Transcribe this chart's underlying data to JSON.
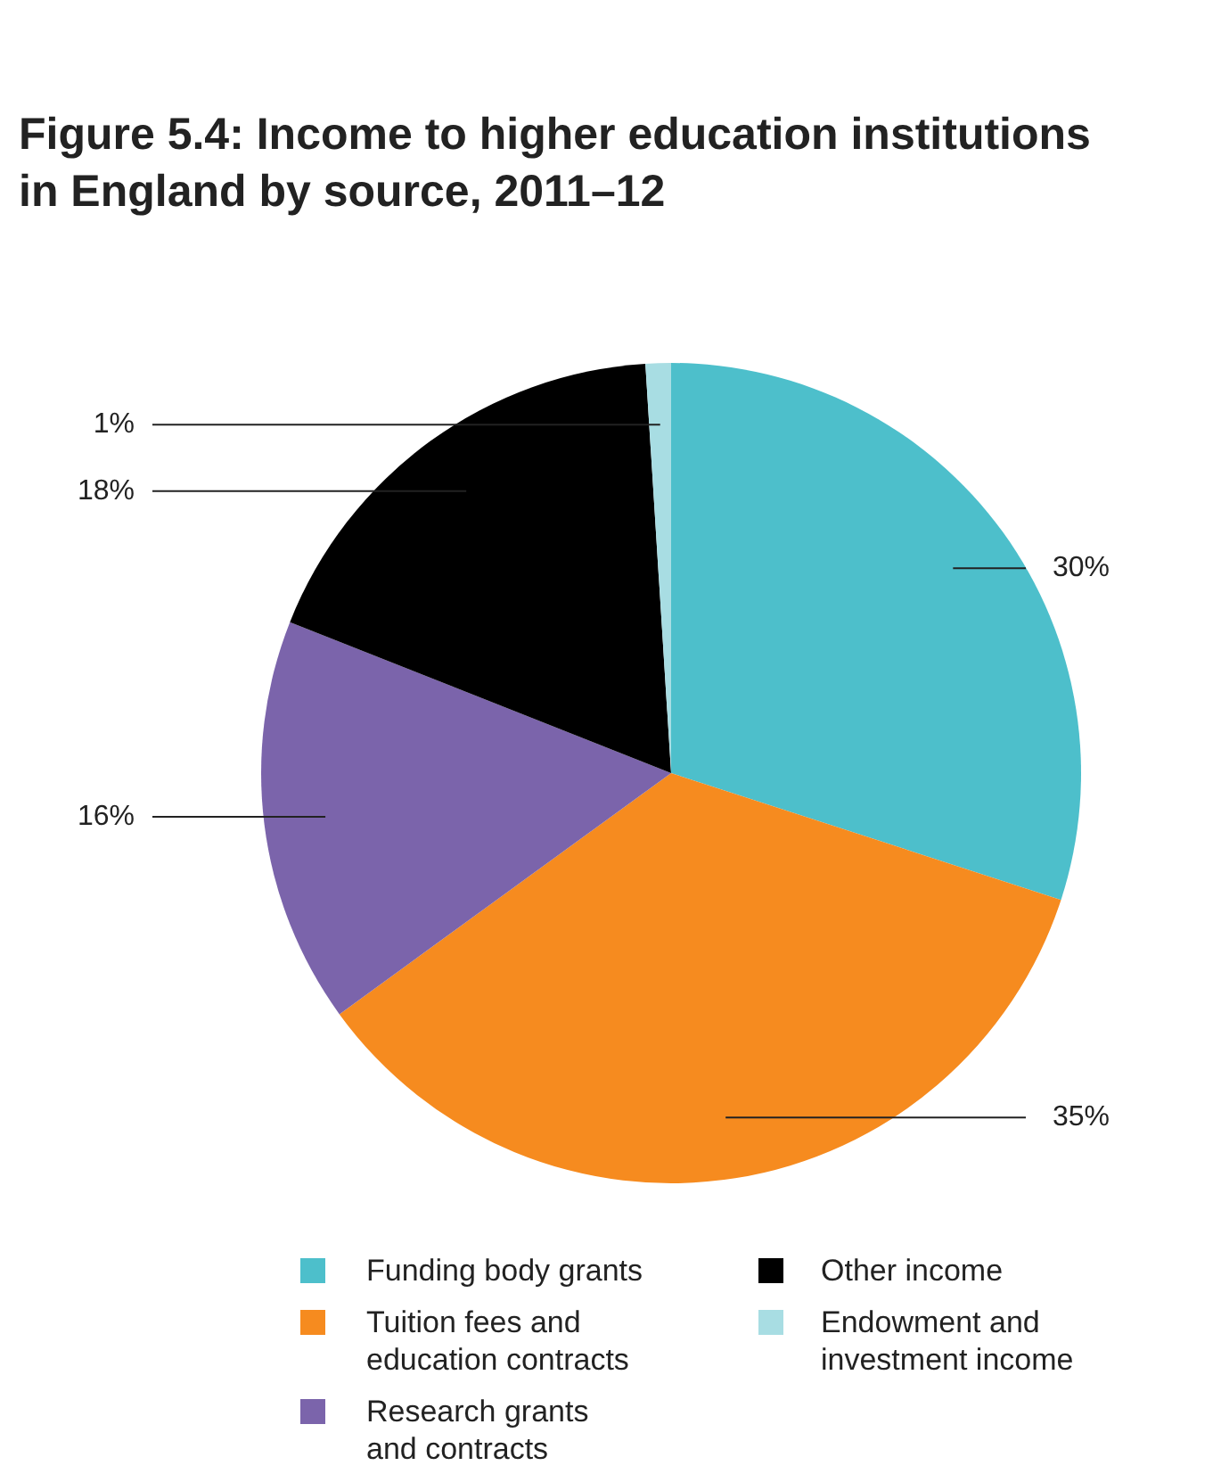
{
  "chart_data": {
    "type": "pie",
    "title": "Figure 5.4: Income to higher education institutions in England by source, 2011–12",
    "categories": [
      "Funding body grants",
      "Tuition fees and education contracts",
      "Research grants and contracts",
      "Other income",
      "Endowment and investment income"
    ],
    "values": [
      30,
      35,
      16,
      18,
      1
    ],
    "value_labels": [
      "30%",
      "35%",
      "16%",
      "18%",
      "1%"
    ],
    "colors": [
      "#4dbfcb",
      "#f68b1f",
      "#7b64ab",
      "#000000",
      "#a8dde3"
    ],
    "legend": "bottom"
  }
}
